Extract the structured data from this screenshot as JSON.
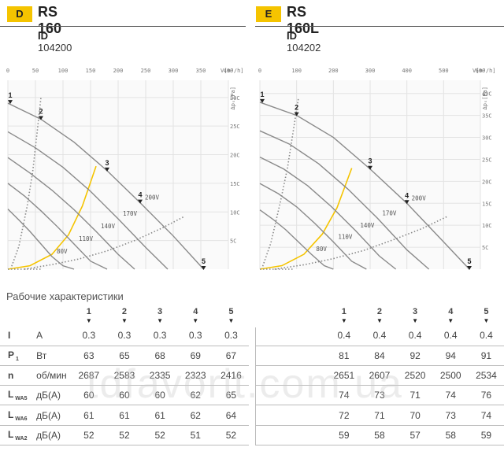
{
  "products": [
    {
      "letter": "D",
      "model": "RS 160",
      "id_label": "ID",
      "id_value": "104200"
    },
    {
      "letter": "E",
      "model": "RS 160L",
      "id_label": "ID",
      "id_value": "104202"
    }
  ],
  "colors": {
    "badge": "#f5c400",
    "curve": "#8a8a8a",
    "system": "#f5c400",
    "grid": "#e3e3e3"
  },
  "chart_data": [
    {
      "type": "line",
      "xlabel": "V[m³/h]",
      "ylabel": "Δpₛ[Pa]",
      "xlim": [
        0,
        400
      ],
      "ylim": [
        0,
        330
      ],
      "x_ticks": [
        "0",
        "50",
        "100",
        "150",
        "200",
        "250",
        "300",
        "350",
        "400"
      ],
      "y_ticks": [
        "300",
        "250",
        "200",
        "150",
        "100",
        "50"
      ],
      "y_ticks_visible": [
        "30C",
        "25C",
        "20C",
        "15C",
        "10C",
        "5C"
      ],
      "point_labels": [
        "1",
        "2",
        "3",
        "4",
        "5"
      ],
      "voltage_labels": [
        "200V",
        "170V",
        "140V",
        "110V",
        "80V"
      ],
      "series": [
        {
          "name": "200V",
          "x": [
            0,
            60,
            120,
            180,
            240,
            300,
            355
          ],
          "y": [
            290,
            262,
            222,
            172,
            116,
            58,
            0
          ]
        },
        {
          "name": "170V",
          "x": [
            0,
            50,
            100,
            150,
            200,
            250,
            290
          ],
          "y": [
            240,
            212,
            178,
            136,
            88,
            38,
            0
          ]
        },
        {
          "name": "140V",
          "x": [
            0,
            40,
            80,
            120,
            160,
            200,
            230
          ],
          "y": [
            195,
            168,
            138,
            104,
            66,
            26,
            0
          ]
        },
        {
          "name": "110V",
          "x": [
            0,
            30,
            60,
            90,
            120,
            150,
            180
          ],
          "y": [
            150,
            128,
            102,
            74,
            44,
            14,
            0
          ]
        },
        {
          "name": "80V",
          "x": [
            0,
            20,
            40,
            60,
            80,
            100,
            120
          ],
          "y": [
            105,
            86,
            66,
            44,
            22,
            6,
            0
          ]
        }
      ],
      "system_curves": [
        {
          "style": "dotted",
          "x": [
            5,
            20,
            35,
            45,
            52,
            60
          ],
          "y": [
            0,
            40,
            110,
            170,
            230,
            300
          ]
        },
        {
          "style": "solid-yellow",
          "x": [
            0,
            40,
            80,
            110,
            135,
            160
          ],
          "y": [
            0,
            6,
            26,
            60,
            110,
            180
          ]
        },
        {
          "style": "dotted",
          "x": [
            30,
            80,
            130,
            180,
            230,
            280,
            320
          ],
          "y": [
            0,
            8,
            18,
            32,
            50,
            72,
            92
          ]
        },
        {
          "style": "dotted",
          "x": [
            0,
            60
          ],
          "y": [
            0,
            0
          ]
        }
      ]
    },
    {
      "type": "line",
      "xlabel": "V[m³/h]",
      "ylabel": "Δpₛ[Pa]",
      "xlim": [
        0,
        600
      ],
      "ylim": [
        0,
        430
      ],
      "x_ticks": [
        "0",
        "100",
        "200",
        "300",
        "400",
        "500",
        "600"
      ],
      "y_ticks": [
        "400",
        "350",
        "300",
        "250",
        "200",
        "150",
        "100",
        "50"
      ],
      "y_ticks_visible": [
        "40C",
        "35C",
        "30C",
        "25C",
        "20C",
        "15C",
        "10C",
        "5C"
      ],
      "point_labels": [
        "1",
        "2",
        "3",
        "4",
        "5"
      ],
      "voltage_labels": [
        "200V",
        "170V",
        "140V",
        "110V",
        "80V"
      ],
      "series": [
        {
          "name": "200V",
          "x": [
            0,
            100,
            200,
            300,
            400,
            500,
            570
          ],
          "y": [
            380,
            350,
            300,
            228,
            150,
            62,
            0
          ]
        },
        {
          "name": "170V",
          "x": [
            0,
            80,
            160,
            240,
            320,
            400,
            460
          ],
          "y": [
            315,
            285,
            240,
            182,
            116,
            44,
            0
          ]
        },
        {
          "name": "140V",
          "x": [
            0,
            65,
            130,
            195,
            260,
            325,
            370
          ],
          "y": [
            255,
            228,
            190,
            142,
            88,
            30,
            0
          ]
        },
        {
          "name": "110V",
          "x": [
            0,
            50,
            100,
            150,
            200,
            250,
            290
          ],
          "y": [
            195,
            172,
            142,
            104,
            62,
            18,
            0
          ]
        },
        {
          "name": "80V",
          "x": [
            0,
            35,
            70,
            105,
            140,
            175,
            200
          ],
          "y": [
            135,
            114,
            90,
            62,
            34,
            8,
            0
          ]
        }
      ],
      "system_curves": [
        {
          "style": "dotted",
          "x": [
            5,
            30,
            55,
            75,
            90,
            105
          ],
          "y": [
            0,
            60,
            150,
            230,
            310,
            390
          ]
        },
        {
          "style": "solid-yellow",
          "x": [
            0,
            60,
            120,
            170,
            210,
            250
          ],
          "y": [
            0,
            8,
            34,
            80,
            140,
            230
          ]
        },
        {
          "style": "dotted",
          "x": [
            40,
            120,
            200,
            280,
            360,
            440,
            510
          ],
          "y": [
            0,
            10,
            24,
            42,
            66,
            92,
            120
          ]
        },
        {
          "style": "dotted",
          "x": [
            0,
            90
          ],
          "y": [
            0,
            0
          ]
        }
      ]
    }
  ],
  "table": {
    "title": "Рабочие характеристики",
    "points": [
      "1",
      "2",
      "3",
      "4",
      "5"
    ],
    "rows": [
      {
        "sym": "I",
        "sub": "",
        "unit": "A",
        "left": [
          "0.3",
          "0.3",
          "0.3",
          "0.3",
          "0.3"
        ],
        "right": [
          "0.4",
          "0.4",
          "0.4",
          "0.4",
          "0.4"
        ]
      },
      {
        "sym": "P",
        "sub": "1",
        "unit": "Вт",
        "left": [
          "63",
          "65",
          "68",
          "69",
          "67"
        ],
        "right": [
          "81",
          "84",
          "92",
          "94",
          "91"
        ]
      },
      {
        "sym": "n",
        "sub": "",
        "unit": "об/мин",
        "left": [
          "2687",
          "2583",
          "2335",
          "2323",
          "2416"
        ],
        "right": [
          "2651",
          "2607",
          "2520",
          "2500",
          "2534"
        ]
      },
      {
        "sym": "L",
        "sub": "WA5",
        "unit": "дБ(A)",
        "left": [
          "60",
          "60",
          "60",
          "62",
          "65"
        ],
        "right": [
          "74",
          "73",
          "71",
          "74",
          "76"
        ]
      },
      {
        "sym": "L",
        "sub": "WA6",
        "unit": "дБ(A)",
        "left": [
          "61",
          "61",
          "61",
          "62",
          "64"
        ],
        "right": [
          "72",
          "71",
          "70",
          "73",
          "74"
        ]
      },
      {
        "sym": "L",
        "sub": "WA2",
        "unit": "дБ(A)",
        "left": [
          "52",
          "52",
          "52",
          "51",
          "52"
        ],
        "right": [
          "59",
          "58",
          "57",
          "58",
          "59"
        ]
      }
    ]
  },
  "watermark": "tdfavorit.com.ua"
}
